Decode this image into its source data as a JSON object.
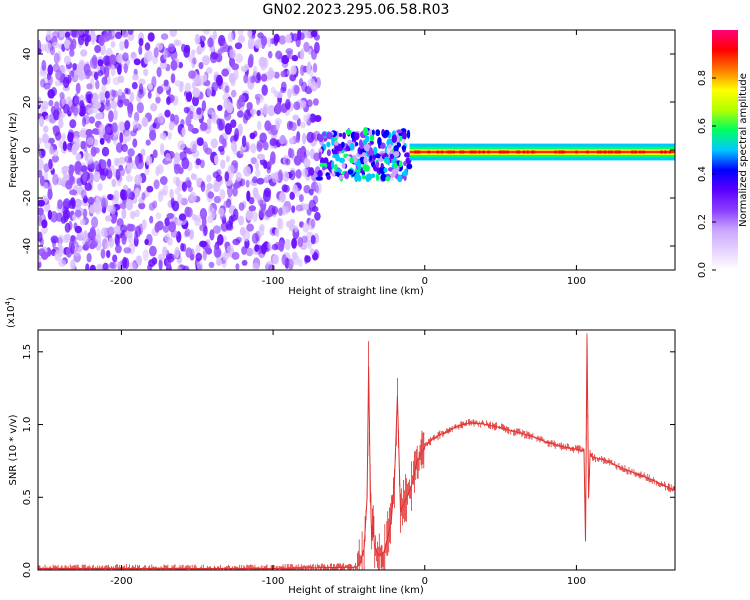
{
  "title": "GN02.2023.295.06.58.R03",
  "chart_data": [
    {
      "type": "heatmap",
      "title": "GN02.2023.295.06.58.R03",
      "xlabel": "Height of straight line (km)",
      "ylabel": "Frequency (Hz)",
      "xlim": [
        -255,
        165
      ],
      "ylim": [
        -50,
        50
      ],
      "xticks": [
        -200,
        -100,
        0,
        100
      ],
      "yticks": [
        -40,
        -20,
        0,
        20,
        40
      ],
      "colorbar": {
        "label": "Normalized spectral amplitude",
        "range": [
          0,
          1
        ],
        "ticks": [
          "0.0",
          "0.2",
          "0.4",
          "0.6",
          "0.8"
        ],
        "colors": [
          "#ffffff",
          "#e6d2ff",
          "#c9a6ff",
          "#8b3dff",
          "#5a00ff",
          "#0000ff",
          "#00c8ff",
          "#00ff60",
          "#b4ff00",
          "#ffff00",
          "#ff7a00",
          "#ff0000",
          "#ff007a"
        ]
      },
      "regions": [
        {
          "x_range": [
            -255,
            -70
          ],
          "freq_range": [
            -50,
            50
          ],
          "amplitude": [
            0.0,
            0.2
          ],
          "description_color": "#7a2cff"
        },
        {
          "x_range": [
            -70,
            -10
          ],
          "freq_range": [
            -12,
            8
          ],
          "amplitude": [
            0.1,
            0.6
          ]
        },
        {
          "x_range": [
            -10,
            165
          ],
          "freq_center": [
            0,
            -2
          ],
          "bandwidth": 4,
          "amplitude": [
            0.5,
            1.0
          ]
        }
      ]
    },
    {
      "type": "line",
      "xlabel": "Height of straight line (km)",
      "ylabel": "SNR (10 * v/v)",
      "yscale_label": "(x10",
      "yscale_exp": "4",
      "xlim": [
        -255,
        165
      ],
      "ylim": [
        0,
        1.65
      ],
      "xticks": [
        -200,
        -100,
        0,
        100
      ],
      "yticks": [
        "0.0",
        "0.5",
        "1.0",
        "1.5"
      ],
      "line_color": "#e03030",
      "series": [
        {
          "x": [
            -255,
            -200,
            -100,
            -45,
            -42,
            -40,
            -38,
            -37,
            -36,
            -35,
            -34,
            -33,
            -30,
            -27,
            -25,
            -22,
            -20,
            -18,
            -16,
            -14,
            -12,
            -10,
            -8,
            -5,
            0,
            5,
            10,
            15,
            20,
            25,
            30,
            35,
            40,
            50,
            60,
            70,
            80,
            90,
            100,
            105,
            106,
            107,
            108,
            109,
            110,
            120,
            130,
            140,
            150,
            160,
            165
          ],
          "y": [
            0.01,
            0.01,
            0.01,
            0.02,
            0.06,
            0.15,
            0.5,
            1.4,
            0.6,
            0.2,
            0.3,
            0.15,
            0.1,
            0.12,
            0.2,
            0.35,
            0.6,
            1.2,
            0.4,
            0.45,
            0.5,
            0.55,
            0.6,
            0.75,
            0.85,
            0.9,
            0.93,
            0.95,
            0.98,
            1.0,
            1.01,
            1.01,
            1.0,
            0.98,
            0.95,
            0.92,
            0.88,
            0.85,
            0.83,
            0.82,
            0.2,
            1.6,
            0.5,
            0.8,
            0.78,
            0.75,
            0.7,
            0.66,
            0.62,
            0.57,
            0.55
          ]
        }
      ]
    }
  ]
}
